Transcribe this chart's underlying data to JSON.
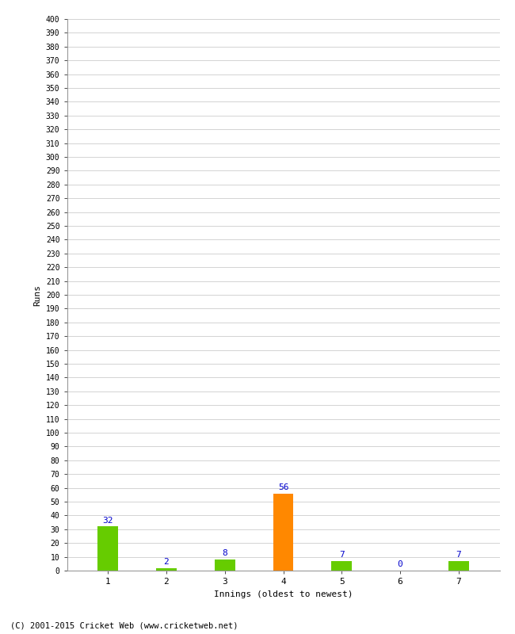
{
  "categories": [
    "1",
    "2",
    "3",
    "4",
    "5",
    "6",
    "7"
  ],
  "values": [
    32,
    2,
    8,
    56,
    7,
    0,
    7
  ],
  "bar_colors": [
    "#66cc00",
    "#66cc00",
    "#66cc00",
    "#ff8800",
    "#66cc00",
    "#66cc00",
    "#66cc00"
  ],
  "xlabel": "Innings (oldest to newest)",
  "ylabel": "Runs",
  "ylim": [
    0,
    400
  ],
  "label_color": "#0000cc",
  "background_color": "#ffffff",
  "grid_color": "#cccccc",
  "footer": "(C) 2001-2015 Cricket Web (www.cricketweb.net)"
}
